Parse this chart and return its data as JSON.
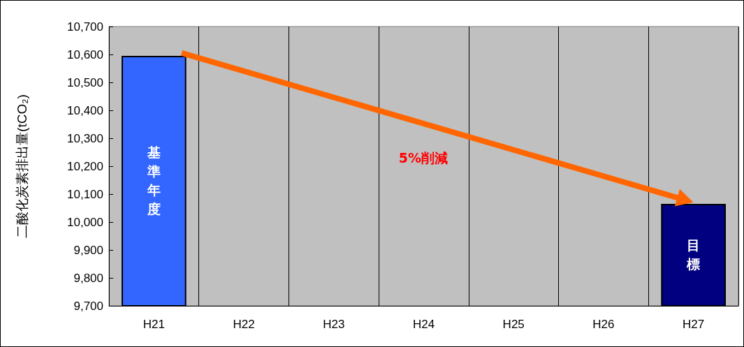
{
  "chart_data": {
    "type": "bar",
    "ylabel": "二酸化炭素排出量(tCO₂)",
    "categories": [
      "H21",
      "H22",
      "H23",
      "H24",
      "H25",
      "H26",
      "H27"
    ],
    "values": [
      10595,
      null,
      null,
      null,
      null,
      null,
      10065
    ],
    "colors": [
      "#3366ff",
      null,
      null,
      null,
      null,
      null,
      "#000080"
    ],
    "ylim": [
      9700,
      10700
    ],
    "yticks": [
      {
        "value": 9700,
        "label": "9,700"
      },
      {
        "value": 9800,
        "label": "9,800"
      },
      {
        "value": 9900,
        "label": "9,900"
      },
      {
        "value": 10000,
        "label": "10,000"
      },
      {
        "value": 10100,
        "label": "10,100"
      },
      {
        "value": 10200,
        "label": "10,200"
      },
      {
        "value": 10300,
        "label": "10,300"
      },
      {
        "value": 10400,
        "label": "10,400"
      },
      {
        "value": 10500,
        "label": "10,500"
      },
      {
        "value": 10600,
        "label": "10,600"
      },
      {
        "value": 10700,
        "label": "10,700"
      }
    ],
    "grid": "x",
    "annotations": [
      "基準年度",
      "目標",
      "5%削減"
    ]
  }
}
